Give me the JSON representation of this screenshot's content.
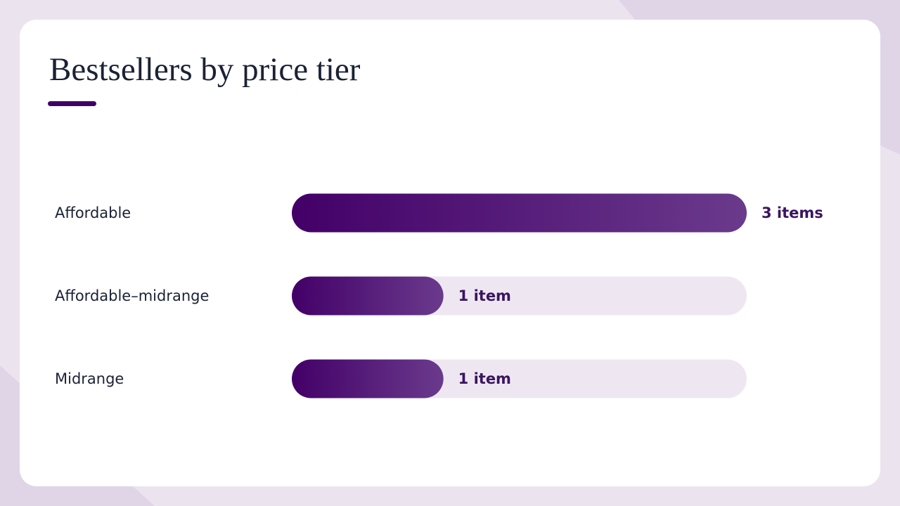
{
  "chart_data": {
    "type": "bar",
    "orientation": "horizontal",
    "title": "Bestsellers by price tier",
    "categories": [
      "Affordable",
      "Affordable–midrange",
      "Midrange"
    ],
    "values": [
      3,
      1,
      1
    ],
    "value_labels": [
      "3 items",
      "1 item",
      "1 item"
    ],
    "color": "#430068"
  }
}
